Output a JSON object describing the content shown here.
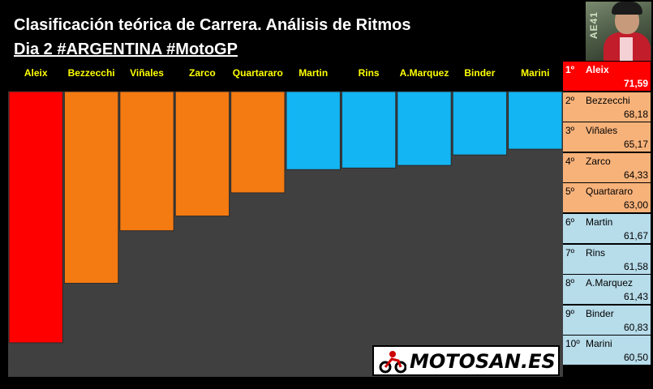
{
  "header": {
    "title": "Clasificación teórica de Carrera. Análisis de Ritmos",
    "subtitle": "Dia 2 #ARGENTINA #MotoGP"
  },
  "photo": {
    "plate_text": "AE41"
  },
  "chart_data": {
    "type": "bar",
    "title": "Clasificación teórica de Carrera. Análisis de Ritmos",
    "subtitle": "Dia 2 #ARGENTINA #MotoGP",
    "categories": [
      "Aleix",
      "Bezzecchi",
      "Viñales",
      "Zarco",
      "Quartararo",
      "Martin",
      "Rins",
      "A.Marquez",
      "Binder",
      "Marini"
    ],
    "values": [
      71.59,
      68.18,
      65.17,
      64.33,
      63.0,
      61.67,
      61.58,
      61.43,
      60.83,
      60.5
    ],
    "bar_colors": [
      "#ff0000",
      "#f47a12",
      "#f47a12",
      "#f47a12",
      "#f47a12",
      "#13b5f2",
      "#13b5f2",
      "#13b5f2",
      "#13b5f2",
      "#13b5f2"
    ],
    "label_color": "#ffff00",
    "background": "#404040",
    "ylim": [
      57.2,
      71.59
    ],
    "orientation": "bars hang from top",
    "grid": false
  },
  "ranking": {
    "items": [
      {
        "pos": "1º",
        "name": "Aleix",
        "value": "71,59",
        "bg": "#ff0000",
        "fg": "#ffffff",
        "bold": true
      },
      {
        "pos": "2º",
        "name": "Bezzecchi",
        "value": "68,18",
        "bg": "#f7b27a",
        "fg": "#000000",
        "bold": false
      },
      {
        "pos": "3º",
        "name": "Viñales",
        "value": "65,17",
        "bg": "#f7b27a",
        "fg": "#000000",
        "bold": false
      },
      {
        "pos": "4º",
        "name": "Zarco",
        "value": "64,33",
        "bg": "#f7b27a",
        "fg": "#000000",
        "bold": false
      },
      {
        "pos": "5º",
        "name": "Quartararo",
        "value": "63,00",
        "bg": "#f7b27a",
        "fg": "#000000",
        "bold": false
      },
      {
        "pos": "6º",
        "name": "Martin",
        "value": "61,67",
        "bg": "#b7dcea",
        "fg": "#000000",
        "bold": false
      },
      {
        "pos": "7º",
        "name": "Rins",
        "value": "61,58",
        "bg": "#b7dcea",
        "fg": "#000000",
        "bold": false
      },
      {
        "pos": "8º",
        "name": "A.Marquez",
        "value": "61,43",
        "bg": "#b7dcea",
        "fg": "#000000",
        "bold": false
      },
      {
        "pos": "9º",
        "name": "Binder",
        "value": "60,83",
        "bg": "#b7dcea",
        "fg": "#000000",
        "bold": false
      },
      {
        "pos": "10º",
        "name": "Marini",
        "value": "60,50",
        "bg": "#b7dcea",
        "fg": "#000000",
        "bold": false
      }
    ]
  },
  "logo": {
    "text": "MOTOSAN.ES",
    "icon": "motorbike-rider-icon"
  }
}
